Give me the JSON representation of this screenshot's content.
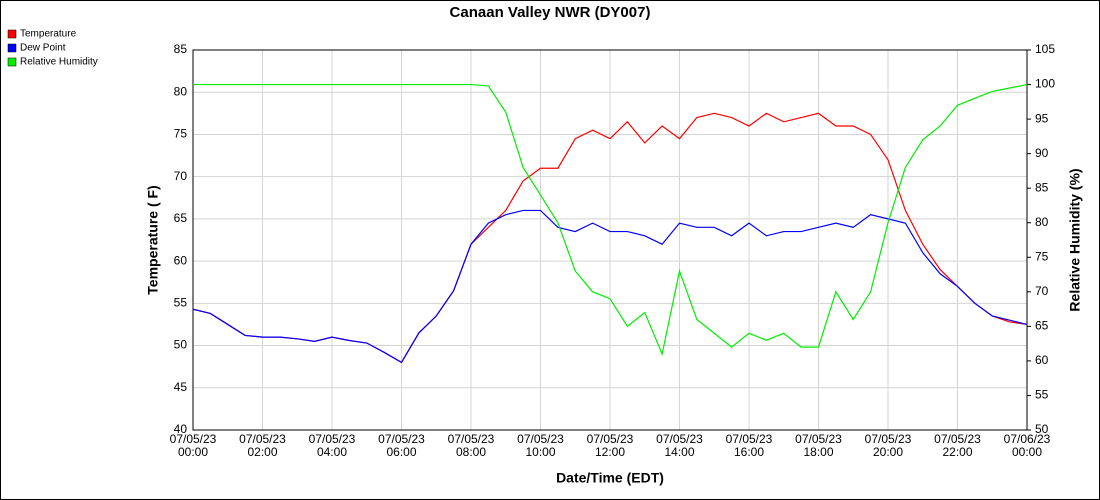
{
  "chart_data": {
    "type": "line",
    "title": "Canaan Valley NWR (DY007)",
    "x_label": "Date/Time (EDT)",
    "y_label": "Temperature ( F)",
    "y2_label": "Relative Humidity (%)",
    "x": [
      0,
      0.5,
      1,
      1.5,
      2,
      2.5,
      3,
      3.5,
      4,
      4.5,
      5,
      5.5,
      6,
      6.5,
      7,
      7.5,
      8,
      8.5,
      9,
      9.5,
      10,
      10.5,
      11,
      11.5,
      12,
      12.5,
      13,
      13.5,
      14,
      14.5,
      15,
      15.5,
      16,
      16.5,
      17,
      17.5,
      18,
      18.5,
      19,
      19.5,
      20,
      20.5,
      21,
      21.5,
      22,
      22.5,
      23,
      23.5,
      24
    ],
    "xlim": [
      0,
      24
    ],
    "xticks": [
      {
        "value": 0,
        "label": "07/05/23 00:00"
      },
      {
        "value": 2,
        "label": "07/05/23 02:00"
      },
      {
        "value": 4,
        "label": "07/05/23 04:00"
      },
      {
        "value": 6,
        "label": "07/05/23 06:00"
      },
      {
        "value": 8,
        "label": "07/05/23 08:00"
      },
      {
        "value": 10,
        "label": "07/05/23 10:00"
      },
      {
        "value": 12,
        "label": "07/05/23 12:00"
      },
      {
        "value": 14,
        "label": "07/05/23 14:00"
      },
      {
        "value": 16,
        "label": "07/05/23 16:00"
      },
      {
        "value": 18,
        "label": "07/05/23 18:00"
      },
      {
        "value": 20,
        "label": "07/05/23 20:00"
      },
      {
        "value": 22,
        "label": "07/05/23 22:00"
      },
      {
        "value": 24,
        "label": "07/06/23 00:00"
      }
    ],
    "ylim": [
      40,
      85
    ],
    "yticks": [
      40,
      45,
      50,
      55,
      60,
      65,
      70,
      75,
      80,
      85
    ],
    "y2lim": [
      50,
      105
    ],
    "y2ticks": [
      50,
      55,
      60,
      65,
      70,
      75,
      80,
      85,
      90,
      95,
      100,
      105
    ],
    "grid": true,
    "series": [
      {
        "name": "Temperature",
        "color": "#ff0000",
        "values": [
          54.3,
          53.8,
          52.5,
          51.2,
          51.0,
          51.0,
          50.8,
          50.5,
          51.0,
          50.6,
          50.3,
          49.2,
          48.0,
          51.5,
          53.5,
          56.5,
          62.0,
          64.0,
          66.0,
          69.5,
          71.0,
          71.0,
          74.5,
          75.5,
          74.5,
          76.5,
          74.0,
          76.0,
          74.5,
          77.0,
          77.5,
          77.0,
          76.0,
          77.5,
          76.5,
          77.0,
          77.5,
          76.0,
          76.0,
          75.0,
          72.0,
          66.0,
          62.0,
          59.0,
          57.0,
          55.0,
          53.5,
          52.8,
          52.5
        ]
      },
      {
        "name": "Dew Point",
        "color": "#0000ff",
        "values": [
          54.3,
          53.8,
          52.5,
          51.2,
          51.0,
          51.0,
          50.8,
          50.5,
          51.0,
          50.6,
          50.3,
          49.2,
          48.0,
          51.5,
          53.5,
          56.5,
          62.0,
          64.5,
          65.5,
          66.0,
          66.0,
          64.0,
          63.5,
          64.5,
          63.5,
          63.5,
          63.0,
          62.0,
          64.5,
          64.0,
          64.0,
          63.0,
          64.5,
          63.0,
          63.5,
          63.5,
          64.0,
          64.5,
          64.0,
          65.5,
          65.0,
          64.5,
          61.0,
          58.5,
          57.0,
          55.0,
          53.5,
          53.0,
          52.5
        ]
      },
      {
        "name": "Relative Humidity",
        "color": "#00ee00",
        "axis": "y2",
        "values": [
          100,
          100,
          100,
          100,
          100,
          100,
          100,
          100,
          100,
          100,
          100,
          100,
          100,
          100,
          100,
          100,
          100,
          99.8,
          96,
          88,
          84,
          80,
          73,
          70,
          69,
          65,
          67,
          61,
          73,
          66,
          64,
          62,
          64,
          63,
          64,
          62,
          62,
          70,
          66,
          70,
          80,
          88,
          92,
          94,
          97,
          98,
          99,
          99.5,
          100
        ]
      }
    ]
  }
}
